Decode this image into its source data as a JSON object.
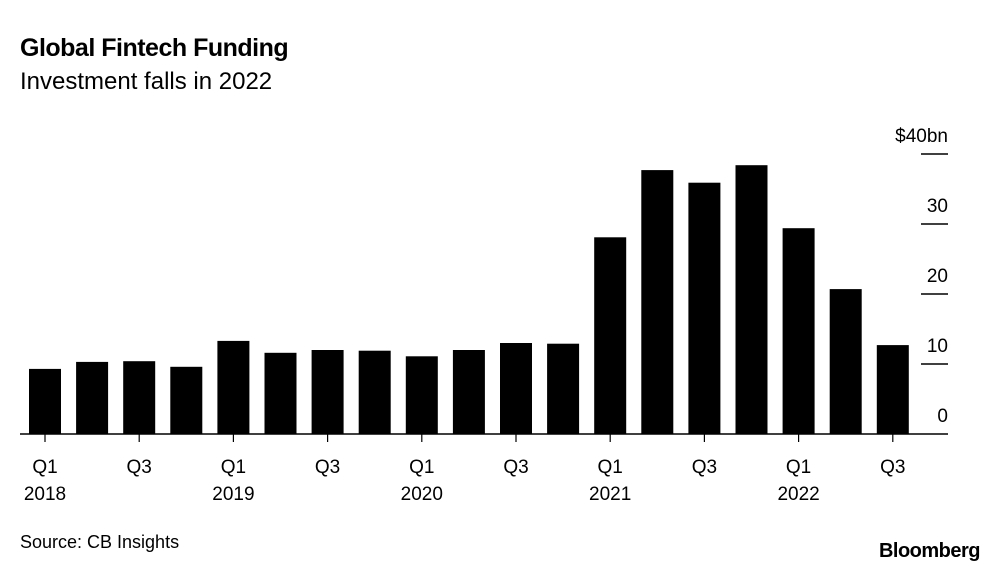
{
  "header": {
    "title": "Global Fintech Funding",
    "subtitle": "Investment falls in 2022"
  },
  "footer": {
    "source": "Source: CB Insights",
    "logo": "Bloomberg"
  },
  "chart_data": {
    "type": "bar",
    "title": "Global Fintech Funding",
    "subtitle": "Investment falls in 2022",
    "categories": [
      "Q1 2018",
      "Q2 2018",
      "Q3 2018",
      "Q4 2018",
      "Q1 2019",
      "Q2 2019",
      "Q3 2019",
      "Q4 2019",
      "Q1 2020",
      "Q2 2020",
      "Q3 2020",
      "Q4 2020",
      "Q1 2021",
      "Q2 2021",
      "Q3 2021",
      "Q4 2021",
      "Q1 2022",
      "Q2 2022",
      "Q3 2022"
    ],
    "values": [
      9.3,
      10.3,
      10.4,
      9.6,
      13.3,
      11.6,
      12.0,
      11.9,
      11.1,
      12.0,
      13.0,
      12.9,
      28.1,
      37.7,
      35.9,
      38.4,
      29.4,
      20.7,
      12.7
    ],
    "unit": "$bn",
    "ylim": [
      0,
      40
    ],
    "y_ticks": [
      {
        "v": 0,
        "label": "0"
      },
      {
        "v": 10,
        "label": "10"
      },
      {
        "v": 20,
        "label": "20"
      },
      {
        "v": 30,
        "label": "30"
      },
      {
        "v": 40,
        "label": "$40bn"
      }
    ],
    "x_ticks": [
      {
        "i": 0,
        "q": "Q1",
        "y": "2018"
      },
      {
        "i": 2,
        "q": "Q3",
        "y": ""
      },
      {
        "i": 4,
        "q": "Q1",
        "y": "2019"
      },
      {
        "i": 6,
        "q": "Q3",
        "y": ""
      },
      {
        "i": 8,
        "q": "Q1",
        "y": "2020"
      },
      {
        "i": 10,
        "q": "Q3",
        "y": ""
      },
      {
        "i": 12,
        "q": "Q1",
        "y": "2021"
      },
      {
        "i": 14,
        "q": "Q3",
        "y": ""
      },
      {
        "i": 16,
        "q": "Q1",
        "y": "2022"
      },
      {
        "i": 18,
        "q": "Q3",
        "y": ""
      }
    ],
    "y_axis_position": "right",
    "bar_color": "#000000",
    "grid": false,
    "source": "Source: CB Insights"
  }
}
